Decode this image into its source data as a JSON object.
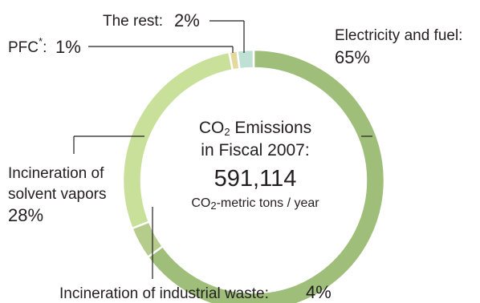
{
  "chart_data": {
    "type": "pie",
    "categories": [
      "Electricity and fuel",
      "Incineration of industrial waste",
      "Incineration of solvent vapors",
      "PFC",
      "The rest"
    ],
    "values": [
      65,
      4,
      28,
      1,
      2
    ],
    "unit": "%",
    "colors": [
      "#9ebe7a",
      "#b5cc8c",
      "#c9e09a",
      "#e4d89e",
      "#bfe0d5"
    ],
    "center": {
      "title_line1": "CO",
      "title_line1_sub": "2",
      "title_line1_rest": " Emissions",
      "title_line2": "in Fiscal 2007:",
      "value": "591,114",
      "unit_pre": "CO",
      "unit_sub": "2",
      "unit_rest": "-metric tons / year"
    },
    "labels": {
      "electricity_name": "Electricity and fuel:",
      "electricity_pct": "65%",
      "industrial_waste_name": "Incineration of industrial waste:",
      "industrial_waste_pct": "4%",
      "solvent_line1": "Incineration of",
      "solvent_line2": "solvent vapors",
      "solvent_pct": "28%",
      "pfc_name": "PFC",
      "pfc_mark": "*",
      "pfc_sep": ":",
      "pfc_pct": "1%",
      "rest_name": "The rest:",
      "rest_pct": "2%"
    }
  }
}
